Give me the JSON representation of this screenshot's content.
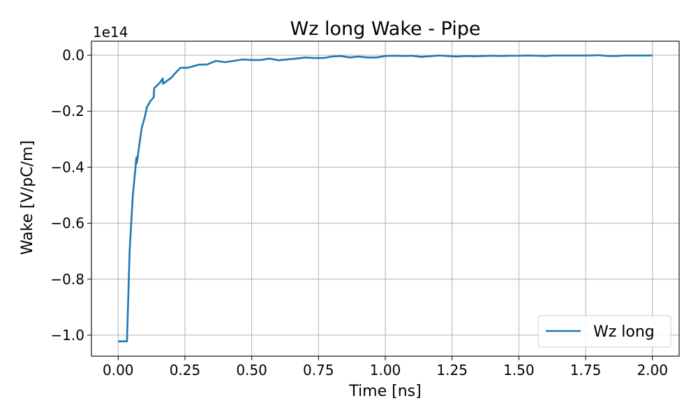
{
  "chart_data": {
    "type": "line",
    "title": "Wz long Wake - Pipe",
    "xlabel": "Time [ns]",
    "ylabel": "Wake [V/pC/m]",
    "scale_label": "1e14",
    "xlim": [
      -0.1,
      2.1
    ],
    "ylim": [
      -1.075,
      0.05
    ],
    "x_ticks": [
      0.0,
      0.25,
      0.5,
      0.75,
      1.0,
      1.25,
      1.5,
      1.75,
      2.0
    ],
    "x_tick_labels": [
      "0.00",
      "0.25",
      "0.50",
      "0.75",
      "1.00",
      "1.25",
      "1.50",
      "1.75",
      "2.00"
    ],
    "y_ticks": [
      -1.0,
      -0.8,
      -0.6,
      -0.4,
      -0.2,
      0.0
    ],
    "y_tick_labels": [
      "−1.0",
      "−0.8",
      "−0.6",
      "−0.4",
      "−0.2",
      "0.0"
    ],
    "grid": true,
    "legend_position": "bottom-right",
    "series": [
      {
        "name": "Wz long",
        "color": "#1f77b4",
        "x": [
          0.0,
          0.033,
          0.043,
          0.055,
          0.065,
          0.068,
          0.07,
          0.078,
          0.088,
          0.1,
          0.108,
          0.12,
          0.133,
          0.135,
          0.155,
          0.167,
          0.168,
          0.2,
          0.21,
          0.233,
          0.243,
          0.26,
          0.3,
          0.333,
          0.367,
          0.4,
          0.433,
          0.467,
          0.5,
          0.533,
          0.567,
          0.6,
          0.633,
          0.667,
          0.7,
          0.733,
          0.767,
          0.8,
          0.833,
          0.867,
          0.9,
          0.933,
          0.967,
          1.0,
          1.033,
          1.067,
          1.1,
          1.133,
          1.167,
          1.2,
          1.233,
          1.267,
          1.3,
          1.333,
          1.367,
          1.4,
          1.433,
          1.467,
          1.5,
          1.533,
          1.567,
          1.6,
          1.633,
          1.667,
          1.7,
          1.733,
          1.767,
          1.8,
          1.833,
          1.867,
          1.9,
          1.933,
          1.967,
          2.0
        ],
        "y": [
          -1.022,
          -1.022,
          -0.7,
          -0.5,
          -0.4,
          -0.365,
          -0.385,
          -0.33,
          -0.26,
          -0.22,
          -0.185,
          -0.165,
          -0.15,
          -0.118,
          -0.1,
          -0.083,
          -0.102,
          -0.08,
          -0.068,
          -0.045,
          -0.045,
          -0.045,
          -0.034,
          -0.033,
          -0.02,
          -0.025,
          -0.02,
          -0.015,
          -0.017,
          -0.017,
          -0.012,
          -0.018,
          -0.015,
          -0.012,
          -0.008,
          -0.01,
          -0.01,
          -0.005,
          -0.003,
          -0.008,
          -0.005,
          -0.008,
          -0.008,
          -0.003,
          -0.002,
          -0.003,
          -0.002,
          -0.006,
          -0.004,
          -0.001,
          -0.003,
          -0.005,
          -0.003,
          -0.004,
          -0.003,
          -0.002,
          -0.003,
          -0.002,
          -0.002,
          -0.001,
          -0.002,
          -0.003,
          -0.001,
          -0.001,
          -0.001,
          -0.001,
          -0.001,
          0.0,
          -0.003,
          -0.003,
          -0.001,
          -0.001,
          -0.001,
          -0.001
        ]
      }
    ]
  }
}
